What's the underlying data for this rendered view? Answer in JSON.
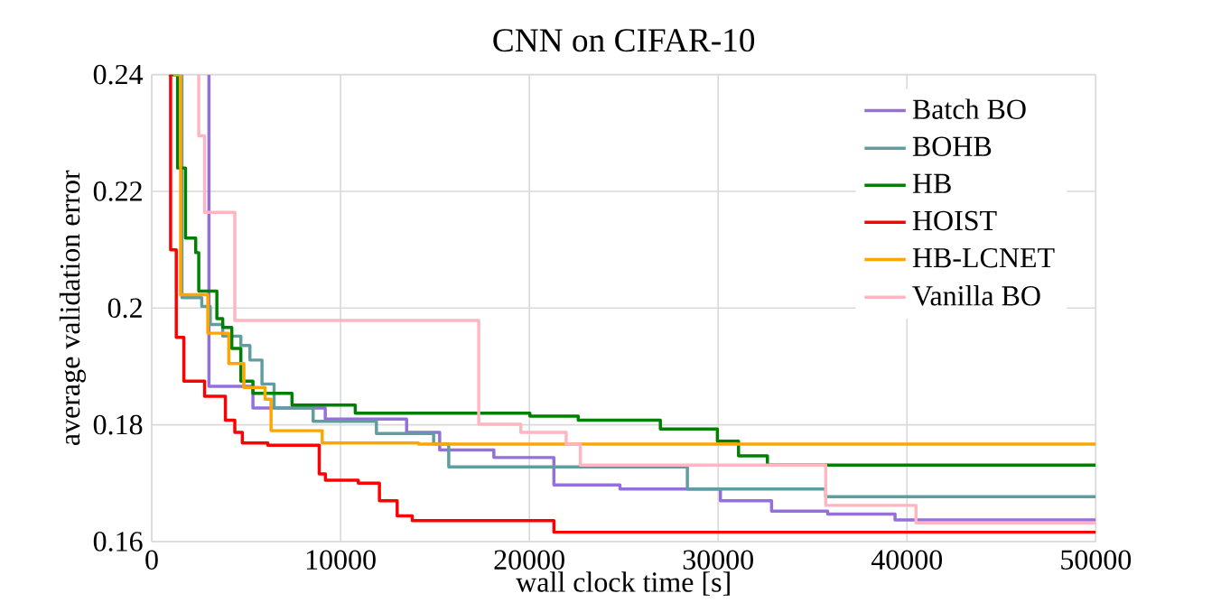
{
  "chart_data": {
    "type": "step",
    "title": "CNN on CIFAR-10",
    "xlabel": "wall clock time [s]",
    "ylabel": "average validation error",
    "xlim": [
      0,
      50000
    ],
    "ylim": [
      0.16,
      0.24
    ],
    "xticks": [
      0,
      10000,
      20000,
      30000,
      40000,
      50000
    ],
    "yticks": [
      0.16,
      0.18,
      0.2,
      0.22,
      0.24
    ],
    "grid": true,
    "legend": "top right",
    "line_style": "solid",
    "marker": "none",
    "series": [
      {
        "name": "Batch BO",
        "color": "#9370db",
        "x": [
          3030,
          3030,
          5360,
          9190,
          13500,
          15250,
          18120,
          21300,
          24800,
          30120,
          32830,
          35800,
          39370,
          50000
        ],
        "values": [
          0.24,
          0.1866,
          0.1829,
          0.181,
          0.1787,
          0.1757,
          0.1744,
          0.1697,
          0.169,
          0.167,
          0.1652,
          0.1647,
          0.1637,
          0.1637
        ]
      },
      {
        "name": "BOHB",
        "color": "#5f9ea0",
        "x": [
          1100,
          1600,
          2650,
          3100,
          3760,
          4720,
          5200,
          5840,
          6480,
          8550,
          11900,
          14930,
          15730,
          28370,
          35700,
          50000
        ],
        "values": [
          0.24,
          0.2018,
          0.2003,
          0.1972,
          0.1952,
          0.1936,
          0.1911,
          0.187,
          0.1829,
          0.1806,
          0.1785,
          0.1767,
          0.1728,
          0.169,
          0.1677,
          0.1677
        ]
      },
      {
        "name": "HB",
        "color": "#008000",
        "x": [
          960,
          1370,
          1790,
          2330,
          2490,
          3450,
          3760,
          4240,
          4720,
          5360,
          7430,
          10780,
          20030,
          22590,
          26940,
          29960,
          31080,
          32610,
          50000
        ],
        "values": [
          0.24,
          0.224,
          0.212,
          0.2095,
          0.2029,
          0.1982,
          0.1967,
          0.1931,
          0.1875,
          0.1854,
          0.1834,
          0.182,
          0.1815,
          0.1808,
          0.1793,
          0.1772,
          0.1747,
          0.1731,
          0.1731
        ]
      },
      {
        "name": "HOIST",
        "color": "#ff0000",
        "x": [
          900,
          1000,
          1300,
          1700,
          2800,
          3900,
          4400,
          4800,
          6150,
          8870,
          9200,
          10940,
          12060,
          13000,
          13800,
          21300,
          50000
        ],
        "values": [
          0.24,
          0.21,
          0.195,
          0.1875,
          0.1849,
          0.1808,
          0.1787,
          0.1769,
          0.1765,
          0.1716,
          0.1705,
          0.17,
          0.167,
          0.1644,
          0.1636,
          0.1616,
          0.1616
        ]
      },
      {
        "name": "HB-LCNET",
        "color": "#ffa500",
        "x": [
          1150,
          1530,
          2970,
          4080,
          4880,
          6000,
          6320,
          9030,
          14130,
          50000
        ],
        "values": [
          0.24,
          0.2023,
          0.1957,
          0.1905,
          0.1864,
          0.1844,
          0.179,
          0.1769,
          0.1767,
          0.1767
        ]
      },
      {
        "name": "Vanilla BO",
        "color": "#ffb6c1",
        "x": [
          2490,
          2490,
          2800,
          4400,
          17320,
          19550,
          21950,
          22700,
          35700,
          40480,
          50000
        ],
        "values": [
          0.24,
          0.2295,
          0.2164,
          0.1979,
          0.1801,
          0.1787,
          0.1767,
          0.1731,
          0.1662,
          0.1632,
          0.1632
        ]
      }
    ]
  }
}
